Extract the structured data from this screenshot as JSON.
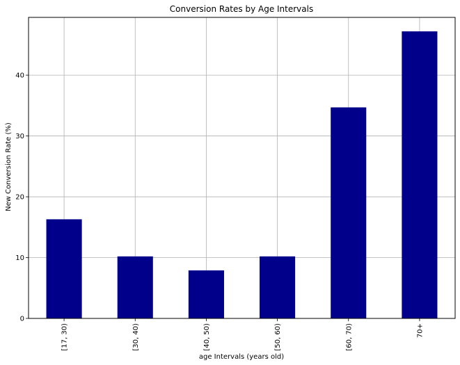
{
  "chart_data": {
    "type": "bar",
    "title": "Conversion Rates by Age Intervals",
    "xlabel": "age Intervals (years old)",
    "ylabel": "New Conversion Rate (%)",
    "categories": [
      "[17, 30)",
      "[30, 40)",
      "[40, 50)",
      "[50, 60)",
      "[60, 70)",
      "70+"
    ],
    "values": [
      16.3,
      10.2,
      7.9,
      10.2,
      34.7,
      47.2
    ],
    "ylim": [
      0,
      49.5
    ],
    "yticks": [
      0,
      10,
      20,
      30,
      40
    ],
    "grid": true,
    "bar_color": "#00008b",
    "grid_color": "#b0b0b0"
  }
}
